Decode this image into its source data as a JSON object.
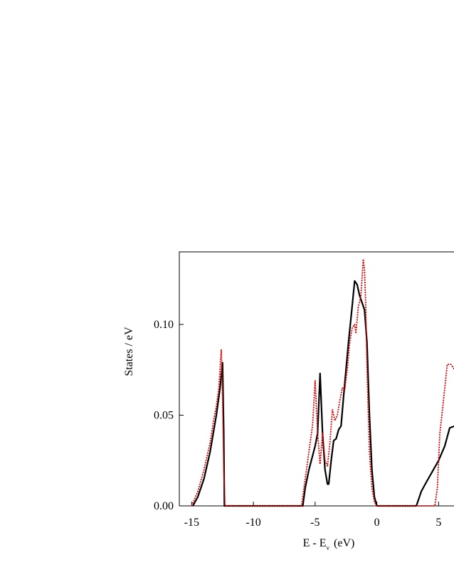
{
  "chart_data": {
    "type": "line",
    "x_label": {
      "main": "E - E",
      "sub": "v",
      "unit": "(eV)"
    },
    "y_label": "States / eV",
    "xlim": [
      -16,
      10
    ],
    "ylim": [
      0,
      0.14
    ],
    "xticks": [
      -15,
      -10,
      -5,
      0,
      5
    ],
    "yticks": [
      {
        "value": 0,
        "label": "0.00"
      },
      {
        "value": 0.05,
        "label": "0.05"
      },
      {
        "value": 0.1,
        "label": "0.10"
      }
    ],
    "series": [
      {
        "color": "#000000",
        "style": "solid",
        "x": [
          -14.9,
          -14.5,
          -14,
          -13.5,
          -13,
          -12.7,
          -12.5,
          -12.4,
          -12.35,
          -6,
          -5.8,
          -5.5,
          -5,
          -4.8,
          -4.6,
          -4.4,
          -4.2,
          -4,
          -3.9,
          -3.7,
          -3.5,
          -3.3,
          -3.1,
          -2.9,
          -2.7,
          -2.5,
          -2.3,
          -2,
          -1.8,
          -1.6,
          -1.4,
          -1.2,
          -1,
          -0.8,
          -0.6,
          -0.4,
          -0.2,
          0,
          3.2,
          3.3,
          3.6,
          4,
          4.5,
          5,
          5.5,
          5.9,
          6.3
        ],
        "values": [
          0,
          0.005,
          0.015,
          0.03,
          0.05,
          0.065,
          0.079,
          0.04,
          0,
          0,
          0.01,
          0.02,
          0.033,
          0.04,
          0.073,
          0.04,
          0.02,
          0.012,
          0.012,
          0.025,
          0.036,
          0.037,
          0.042,
          0.044,
          0.06,
          0.075,
          0.09,
          0.11,
          0.124,
          0.122,
          0.116,
          0.112,
          0.108,
          0.09,
          0.05,
          0.02,
          0.005,
          0,
          0,
          0.002,
          0.008,
          0.013,
          0.019,
          0.025,
          0.033,
          0.043,
          0.044
        ]
      },
      {
        "color": "#e00000",
        "style": "dotted",
        "x": [
          -15,
          -14.5,
          -14,
          -13.5,
          -13.2,
          -13,
          -12.8,
          -12.6,
          -12.5,
          -12.4,
          -12.3,
          -6.1,
          -5.8,
          -5.5,
          -5.2,
          -5,
          -4.8,
          -4.6,
          -4.4,
          -4.2,
          -4,
          -3.8,
          -3.6,
          -3.4,
          -3.2,
          -3,
          -2.8,
          -2.6,
          -2.4,
          -2.2,
          -2,
          -1.8,
          -1.7,
          -1.5,
          -1.3,
          -1.1,
          -1,
          -0.9,
          -0.8,
          -0.6,
          -0.4,
          -0.2,
          0,
          4.7,
          4.9,
          5.1,
          5.3,
          5.5,
          5.7,
          6,
          6.3
        ],
        "values": [
          0,
          0.008,
          0.02,
          0.035,
          0.048,
          0.055,
          0.065,
          0.086,
          0.06,
          0.02,
          0,
          0,
          0.015,
          0.03,
          0.045,
          0.069,
          0.04,
          0.023,
          0.04,
          0.025,
          0.022,
          0.035,
          0.053,
          0.047,
          0.05,
          0.058,
          0.065,
          0.064,
          0.075,
          0.09,
          0.098,
          0.1,
          0.095,
          0.11,
          0.115,
          0.136,
          0.13,
          0.11,
          0.075,
          0.03,
          0.01,
          0.002,
          0,
          0,
          0.01,
          0.04,
          0.052,
          0.065,
          0.078,
          0.078,
          0.075
        ]
      }
    ]
  }
}
